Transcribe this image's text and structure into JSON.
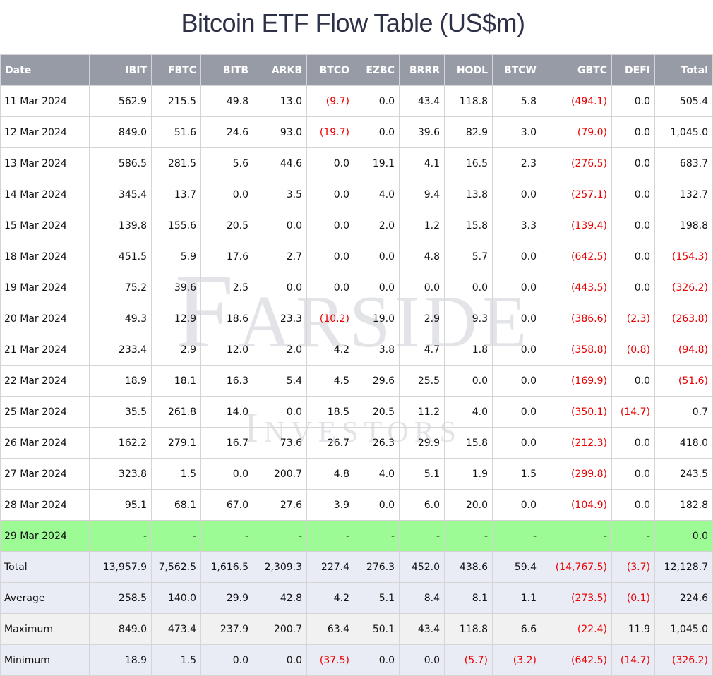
{
  "title": "Bitcoin ETF Flow Table (US$m)",
  "watermark": {
    "line1": "Farside",
    "line2": "Investors"
  },
  "colors": {
    "header_bg": "#979ba6",
    "negative": "#ea0000",
    "today_row": "#9cfb95",
    "summary_row": "#e9ecf5"
  },
  "chart_data": {
    "type": "table",
    "title": "Bitcoin ETF Flow Table (US$m)",
    "columns": [
      "Date",
      "IBIT",
      "FBTC",
      "BITB",
      "ARKB",
      "BTCO",
      "EZBC",
      "BRRR",
      "HODL",
      "BTCW",
      "GBTC",
      "DEFI",
      "Total"
    ],
    "rows": [
      [
        "11 Mar 2024",
        "562.9",
        "215.5",
        "49.8",
        "13.0",
        "(9.7)",
        "0.0",
        "43.4",
        "118.8",
        "5.8",
        "(494.1)",
        "0.0",
        "505.4"
      ],
      [
        "12 Mar 2024",
        "849.0",
        "51.6",
        "24.6",
        "93.0",
        "(19.7)",
        "0.0",
        "39.6",
        "82.9",
        "3.0",
        "(79.0)",
        "0.0",
        "1,045.0"
      ],
      [
        "13 Mar 2024",
        "586.5",
        "281.5",
        "5.6",
        "44.6",
        "0.0",
        "19.1",
        "4.1",
        "16.5",
        "2.3",
        "(276.5)",
        "0.0",
        "683.7"
      ],
      [
        "14 Mar 2024",
        "345.4",
        "13.7",
        "0.0",
        "3.5",
        "0.0",
        "4.0",
        "9.4",
        "13.8",
        "0.0",
        "(257.1)",
        "0.0",
        "132.7"
      ],
      [
        "15 Mar 2024",
        "139.8",
        "155.6",
        "20.5",
        "0.0",
        "0.0",
        "2.0",
        "1.2",
        "15.8",
        "3.3",
        "(139.4)",
        "0.0",
        "198.8"
      ],
      [
        "18 Mar 2024",
        "451.5",
        "5.9",
        "17.6",
        "2.7",
        "0.0",
        "0.0",
        "4.8",
        "5.7",
        "0.0",
        "(642.5)",
        "0.0",
        "(154.3)"
      ],
      [
        "19 Mar 2024",
        "75.2",
        "39.6",
        "2.5",
        "0.0",
        "0.0",
        "0.0",
        "0.0",
        "0.0",
        "0.0",
        "(443.5)",
        "0.0",
        "(326.2)"
      ],
      [
        "20 Mar 2024",
        "49.3",
        "12.9",
        "18.6",
        "23.3",
        "(10.2)",
        "19.0",
        "2.9",
        "9.3",
        "0.0",
        "(386.6)",
        "(2.3)",
        "(263.8)"
      ],
      [
        "21 Mar 2024",
        "233.4",
        "2.9",
        "12.0",
        "2.0",
        "4.2",
        "3.8",
        "4.7",
        "1.8",
        "0.0",
        "(358.8)",
        "(0.8)",
        "(94.8)"
      ],
      [
        "22 Mar 2024",
        "18.9",
        "18.1",
        "16.3",
        "5.4",
        "4.5",
        "29.6",
        "25.5",
        "0.0",
        "0.0",
        "(169.9)",
        "0.0",
        "(51.6)"
      ],
      [
        "25 Mar 2024",
        "35.5",
        "261.8",
        "14.0",
        "0.0",
        "18.5",
        "20.5",
        "11.2",
        "4.0",
        "0.0",
        "(350.1)",
        "(14.7)",
        "0.7"
      ],
      [
        "26 Mar 2024",
        "162.2",
        "279.1",
        "16.7",
        "73.6",
        "26.7",
        "26.3",
        "29.9",
        "15.8",
        "0.0",
        "(212.3)",
        "0.0",
        "418.0"
      ],
      [
        "27 Mar 2024",
        "323.8",
        "1.5",
        "0.0",
        "200.7",
        "4.8",
        "4.0",
        "5.1",
        "1.9",
        "1.5",
        "(299.8)",
        "0.0",
        "243.5"
      ],
      [
        "28 Mar 2024",
        "95.1",
        "68.1",
        "67.0",
        "27.6",
        "3.9",
        "0.0",
        "6.0",
        "20.0",
        "0.0",
        "(104.9)",
        "0.0",
        "182.8"
      ],
      [
        "29 Mar 2024",
        "-",
        "-",
        "-",
        "-",
        "-",
        "-",
        "-",
        "-",
        "-",
        "-",
        "-",
        "0.0"
      ],
      [
        "Total",
        "13,957.9",
        "7,562.5",
        "1,616.5",
        "2,309.3",
        "227.4",
        "276.3",
        "452.0",
        "438.6",
        "59.4",
        "(14,767.5)",
        "(3.7)",
        "12,128.7"
      ],
      [
        "Average",
        "258.5",
        "140.0",
        "29.9",
        "42.8",
        "4.2",
        "5.1",
        "8.4",
        "8.1",
        "1.1",
        "(273.5)",
        "(0.1)",
        "224.6"
      ],
      [
        "Maximum",
        "849.0",
        "473.4",
        "237.9",
        "200.7",
        "63.4",
        "50.1",
        "43.4",
        "118.8",
        "6.6",
        "(22.4)",
        "11.9",
        "1,045.0"
      ],
      [
        "Minimum",
        "18.9",
        "1.5",
        "0.0",
        "0.0",
        "(37.5)",
        "0.0",
        "0.0",
        "(5.7)",
        "(3.2)",
        "(642.5)",
        "(14.7)",
        "(326.2)"
      ]
    ]
  }
}
